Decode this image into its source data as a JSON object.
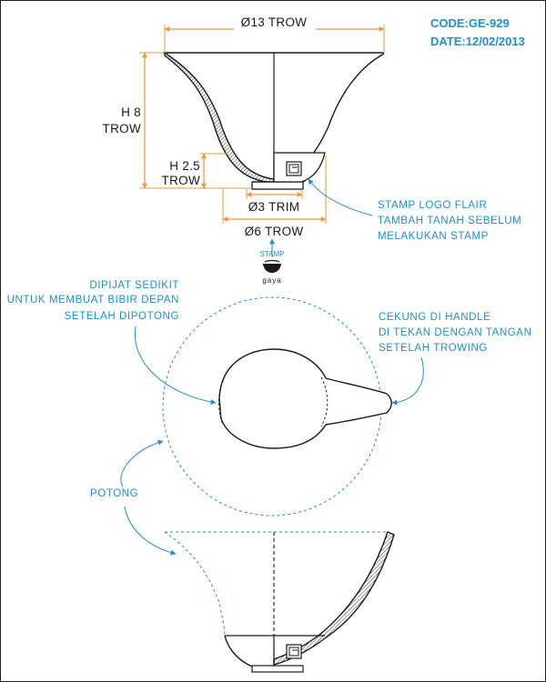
{
  "header": {
    "code": "CODE:GE-929",
    "date": "DATE:12/02/2013"
  },
  "dimensions": {
    "top_diameter": "Ø13 TROW",
    "height_line1": "H 8",
    "height_line2": "TROW",
    "foot_height_line1": "H 2.5",
    "foot_height_line2": "TROW",
    "foot_trim": "Ø3 TRIM",
    "foot_diameter": "Ø6 TROW"
  },
  "logo": {
    "stamp_label": "STAMP",
    "brand": "gaya"
  },
  "notes": {
    "stamp_logo": [
      "STAMP LOGO FLAIR",
      "TAMBAH TANAH SEBELUM",
      "MELAKUKAN STAMP"
    ],
    "pinch": [
      "DIPIJAT SEDIKIT",
      "UNTUK MEMBUAT BIBIR DEPAN",
      "SETELAH DIPOTONG"
    ],
    "handle": [
      "CEKUNG DI HANDLE",
      "DI TEKAN DENGAN TANGAN",
      "SETELAH TROWING"
    ],
    "cut": "POTONG"
  },
  "colors": {
    "annotation": "#1e8fd0",
    "line": "#1a1a1a",
    "dimension": "#e89a3c"
  }
}
